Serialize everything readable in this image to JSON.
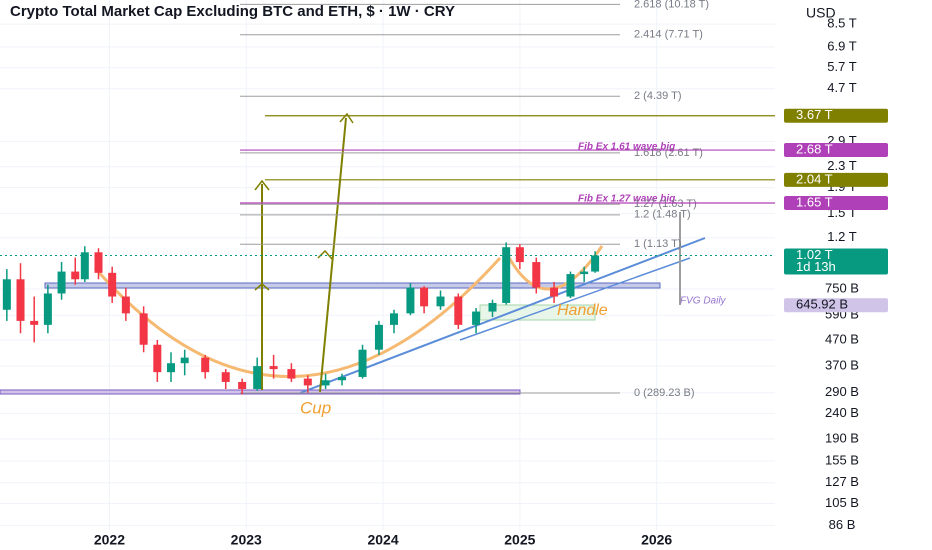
{
  "title": "Crypto Total Market Cap Excluding BTC and ETH, $ · 1W · CRY",
  "currency": "USD",
  "chart_data": {
    "type": "candlestick",
    "log_scale": true,
    "grid": true,
    "up_color": "#089981",
    "down_color": "#f23645",
    "xlim": [
      2021.2,
      2026.865
    ],
    "xticks": [
      2022,
      2023,
      2024,
      2025,
      2026
    ],
    "ylim": [
      82.4,
      10600
    ],
    "yticks": [
      {
        "value": 8500,
        "label": "8.5 T"
      },
      {
        "value": 6900,
        "label": "6.9 T"
      },
      {
        "value": 5700,
        "label": "5.7 T"
      },
      {
        "value": 4700,
        "label": "4.7 T"
      },
      {
        "value": 2900,
        "label": "2.9 T"
      },
      {
        "value": 2300,
        "label": "2.3 T"
      },
      {
        "value": 1900,
        "label": "1.9 T"
      },
      {
        "value": 1500,
        "label": "1.5 T"
      },
      {
        "value": 1200,
        "label": "1.2 T"
      },
      {
        "value": 750,
        "label": "750 B"
      },
      {
        "value": 590,
        "label": "590 B"
      },
      {
        "value": 470,
        "label": "470 B"
      },
      {
        "value": 370,
        "label": "370 B"
      },
      {
        "value": 290,
        "label": "290 B"
      },
      {
        "value": 240,
        "label": "240 B"
      },
      {
        "value": 190,
        "label": "190 B"
      },
      {
        "value": 155,
        "label": "155 B"
      },
      {
        "value": 127,
        "label": "127 B"
      },
      {
        "value": 105,
        "label": "105 B"
      },
      {
        "value": 86,
        "label": "86 B"
      }
    ],
    "x": [
      2021.25,
      2021.35,
      2021.45,
      2021.55,
      2021.65,
      2021.75,
      2021.82,
      2021.92,
      2022.02,
      2022.12,
      2022.25,
      2022.35,
      2022.45,
      2022.55,
      2022.7,
      2022.85,
      2022.97,
      2023.08,
      2023.2,
      2023.33,
      2023.45,
      2023.58,
      2023.7,
      2023.85,
      2023.97,
      2024.08,
      2024.2,
      2024.3,
      2024.42,
      2024.55,
      2024.68,
      2024.8,
      2024.9,
      2025.0,
      2025.12,
      2025.25,
      2025.37,
      2025.47,
      2025.55
    ],
    "open": [
      620,
      820,
      560,
      540,
      720,
      880,
      820,
      1050,
      870,
      700,
      600,
      450,
      350,
      380,
      400,
      350,
      320,
      300,
      370,
      360,
      330,
      310,
      325,
      335,
      430,
      540,
      600,
      760,
      640,
      700,
      540,
      610,
      660,
      1100,
      960,
      760,
      700,
      860,
      880
    ],
    "high": [
      900,
      950,
      700,
      780,
      960,
      1000,
      1110,
      1090,
      920,
      760,
      640,
      470,
      420,
      430,
      410,
      360,
      330,
      400,
      410,
      380,
      340,
      345,
      345,
      450,
      560,
      620,
      790,
      770,
      740,
      720,
      630,
      680,
      1150,
      1130,
      1000,
      800,
      880,
      920,
      1060
    ],
    "low": [
      560,
      500,
      460,
      500,
      680,
      780,
      800,
      820,
      660,
      560,
      420,
      320,
      320,
      340,
      330,
      300,
      285,
      295,
      330,
      320,
      290,
      300,
      310,
      330,
      410,
      500,
      590,
      600,
      620,
      520,
      500,
      580,
      650,
      900,
      720,
      660,
      690,
      800,
      870
    ],
    "close": [
      820,
      560,
      540,
      720,
      880,
      820,
      1050,
      870,
      700,
      600,
      450,
      350,
      380,
      400,
      350,
      320,
      300,
      370,
      360,
      330,
      310,
      325,
      335,
      430,
      540,
      600,
      760,
      640,
      700,
      540,
      610,
      660,
      1100,
      960,
      760,
      700,
      860,
      880,
      1020
    ],
    "fib_levels": [
      {
        "value": 10180,
        "label": "2.618 (10.18 T)"
      },
      {
        "value": 7710,
        "label": "2.414 (7.71 T)"
      },
      {
        "value": 4390,
        "label": "2 (4.39 T)"
      },
      {
        "value": 2610,
        "label": "1.618 (2.61 T)"
      },
      {
        "value": 1630,
        "label": "1.27 (1.63 T)"
      },
      {
        "value": 1480,
        "label": "1.2 (1.48 T)"
      },
      {
        "value": 1130,
        "label": "1 (1.13 T)"
      },
      {
        "value": 289.23,
        "label": "0 (289.23 B)"
      }
    ],
    "price_markers": [
      {
        "value": 3670,
        "label": "3.67 T",
        "color": "#808000"
      },
      {
        "value": 2680,
        "label": "2.68 T",
        "color": "#b040b8"
      },
      {
        "value": 2040,
        "label": "2.04 T",
        "color": "#808000"
      },
      {
        "value": 1650,
        "label": "1.65 T",
        "color": "#b040b8"
      },
      {
        "value": 1020,
        "label": "1.02 T",
        "color": "#089981"
      },
      {
        "value": 645.92,
        "label": "645.92 B",
        "color": "#d1c4e9"
      }
    ],
    "countdown": "1d 13h",
    "annotations": {
      "cup": "Cup",
      "handle": "Handle",
      "fvg": "FVG Daily",
      "fib161": "Fib Ex 1.61 wave big",
      "fib127": "Fib Ex 1.27 wave big"
    }
  }
}
